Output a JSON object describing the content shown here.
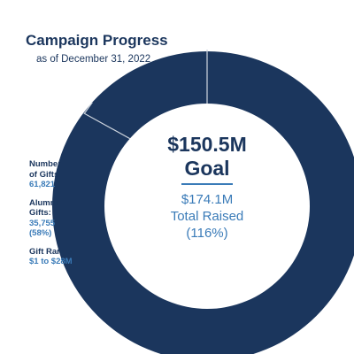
{
  "header": {
    "title": "Campaign Progress",
    "subtitle": "as of December 31, 2022"
  },
  "center": {
    "goal_amount": "$150.5M",
    "goal_label": "Goal",
    "raised_amount": "$174.1M",
    "raised_label": "Total Raised",
    "raised_percent": "(116%)"
  },
  "stats": [
    {
      "label_lines": [
        "Number",
        "of Gifts:"
      ],
      "value_lines": [
        "61,821"
      ]
    },
    {
      "label_lines": [
        "Alumni",
        "Gifts:"
      ],
      "value_lines": [
        "35,755",
        "(58%)"
      ]
    },
    {
      "label_lines": [
        "Gift Range:"
      ],
      "value_lines": [
        "$1 to $28M"
      ]
    }
  ],
  "colors": {
    "ring": "#1b365d",
    "accent": "#3a7bb8",
    "text": "#1b365d",
    "goal_marker": "#cfd6df"
  },
  "chart_data": {
    "type": "donut",
    "goal": 150.5,
    "raised": 174.1,
    "unit": "$M",
    "percent_of_goal": 116
  }
}
